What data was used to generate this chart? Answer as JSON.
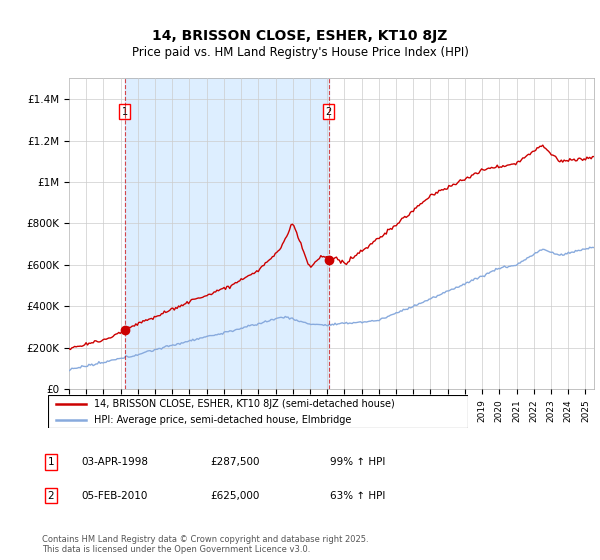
{
  "title": "14, BRISSON CLOSE, ESHER, KT10 8JZ",
  "subtitle": "Price paid vs. HM Land Registry's House Price Index (HPI)",
  "ylim": [
    0,
    1500000
  ],
  "yticks": [
    0,
    200000,
    400000,
    600000,
    800000,
    1000000,
    1200000,
    1400000
  ],
  "ytick_labels": [
    "£0",
    "£200K",
    "£400K",
    "£600K",
    "£800K",
    "£1M",
    "£1.2M",
    "£1.4M"
  ],
  "transaction1": {
    "date_num": 1998.25,
    "price": 287500
  },
  "transaction2": {
    "date_num": 2010.09,
    "price": 625000
  },
  "line1_color": "#cc0000",
  "line2_color": "#88aadd",
  "vline_color": "#cc0000",
  "shade_color": "#ddeeff",
  "background_color": "#ffffff",
  "grid_color": "#cccccc",
  "legend_line1": "14, BRISSON CLOSE, ESHER, KT10 8JZ (semi-detached house)",
  "legend_line2": "HPI: Average price, semi-detached house, Elmbridge",
  "footer": "Contains HM Land Registry data © Crown copyright and database right 2025.\nThis data is licensed under the Open Government Licence v3.0.",
  "xmin": 1995,
  "xmax": 2025.5,
  "note1_date": "03-APR-1998",
  "note1_price": "£287,500",
  "note1_hpi": "99% ↑ HPI",
  "note2_date": "05-FEB-2010",
  "note2_price": "£625,000",
  "note2_hpi": "63% ↑ HPI"
}
